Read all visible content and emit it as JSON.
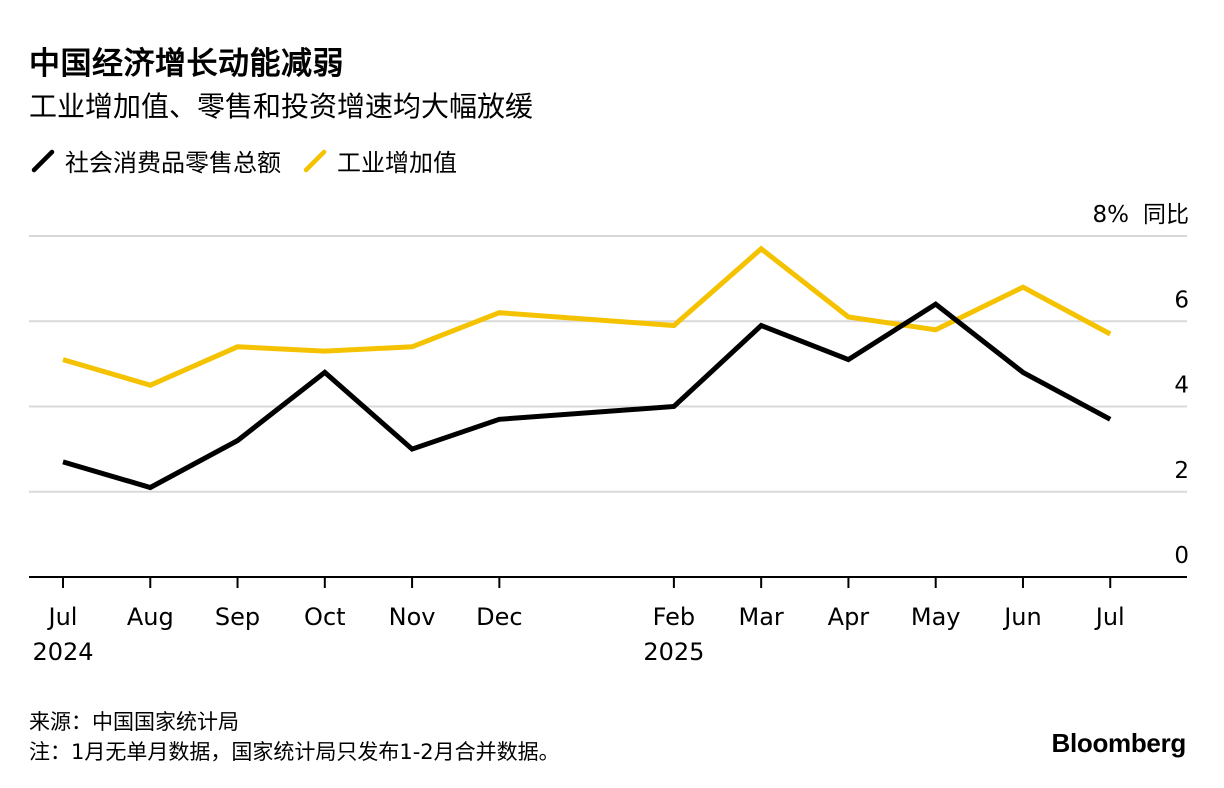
{
  "title": "中国经济增长动能减弱",
  "subtitle": "工业增加值、零售和投资增速均大幅放缓",
  "source": "来源：中国国家统计局",
  "note": "注：1月无单月数据，国家统计局只发布1-2月合并数据。",
  "brand": "Bloomberg",
  "colors": {
    "retail": "#000000",
    "industrial": "#f5c200",
    "grid": "#d9d9d9"
  },
  "chart_data": {
    "type": "line",
    "title": "中国经济增长动能减弱",
    "subtitle": "工业增加值、零售和投资增速均大幅放缓",
    "ylabel": "同比",
    "ylim": [
      0,
      8
    ],
    "yticks": [
      0,
      2,
      4,
      6,
      8
    ],
    "ytick_labels": [
      "0",
      "2",
      "4",
      "6",
      "8%"
    ],
    "grid": true,
    "legend_position": "top-left",
    "x": [
      "2024-07",
      "2024-08",
      "2024-09",
      "2024-10",
      "2024-11",
      "2024-12",
      "2025-02",
      "2025-03",
      "2025-04",
      "2025-05",
      "2025-06",
      "2025-07"
    ],
    "xtick_labels": [
      "Jul",
      "Aug",
      "Sep",
      "Oct",
      "Nov",
      "Dec",
      "Feb",
      "Mar",
      "Apr",
      "May",
      "Jun",
      "Jul"
    ],
    "xtick_years": [
      "2024",
      "",
      "",
      "",
      "",
      "",
      "2025",
      "",
      "",
      "",
      "",
      ""
    ],
    "series": [
      {
        "name": "社会消费品零售总额",
        "color": "#000000",
        "values": [
          2.7,
          2.1,
          3.2,
          4.8,
          3.0,
          3.7,
          4.0,
          5.9,
          5.1,
          6.4,
          4.8,
          3.7
        ]
      },
      {
        "name": "工业增加值",
        "color": "#f5c200",
        "values": [
          5.1,
          4.5,
          5.4,
          5.3,
          5.4,
          6.2,
          5.9,
          7.7,
          6.1,
          5.8,
          6.8,
          5.7
        ]
      }
    ]
  }
}
